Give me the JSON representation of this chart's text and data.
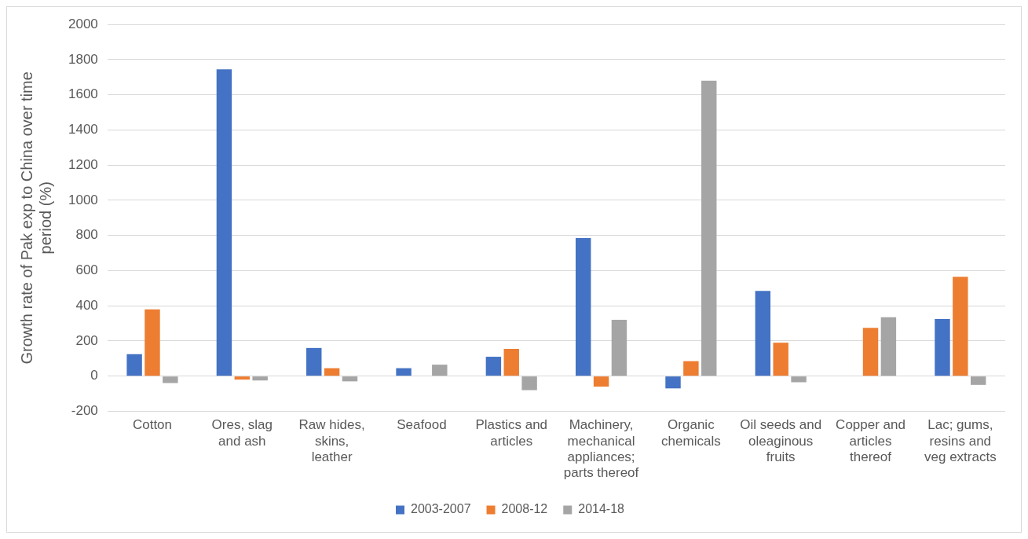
{
  "chart_data": {
    "type": "bar",
    "ylabel": "Growth rate of Pak exp to China over time period (%)",
    "categories": [
      "Cotton",
      "Ores, slag and ash",
      "Raw hides, skins, leather",
      "Seafood",
      "Plastics and articles",
      "Machinery, mechanical appliances; parts thereof",
      "Organic chemicals",
      "Oil seeds and oleaginous fruits",
      "Copper and articles thereof",
      "Lac; gums, resins and veg extracts"
    ],
    "series": [
      {
        "name": "2003-2007",
        "color": "#4472c4",
        "values": [
          125,
          1745,
          160,
          45,
          110,
          785,
          -70,
          485,
          null,
          325
        ]
      },
      {
        "name": "2008-12",
        "color": "#ed7d31",
        "values": [
          380,
          -20,
          45,
          null,
          155,
          -60,
          85,
          190,
          275,
          565
        ]
      },
      {
        "name": "2014-18",
        "color": "#a5a5a5",
        "values": [
          -40,
          -25,
          -30,
          65,
          -80,
          320,
          1680,
          -35,
          335,
          -50
        ]
      }
    ],
    "ylim": [
      -200,
      2000
    ],
    "yticks": [
      -200,
      0,
      200,
      400,
      600,
      800,
      1000,
      1200,
      1400,
      1600,
      1800,
      2000
    ],
    "grid": "y",
    "legend": "bottom"
  }
}
